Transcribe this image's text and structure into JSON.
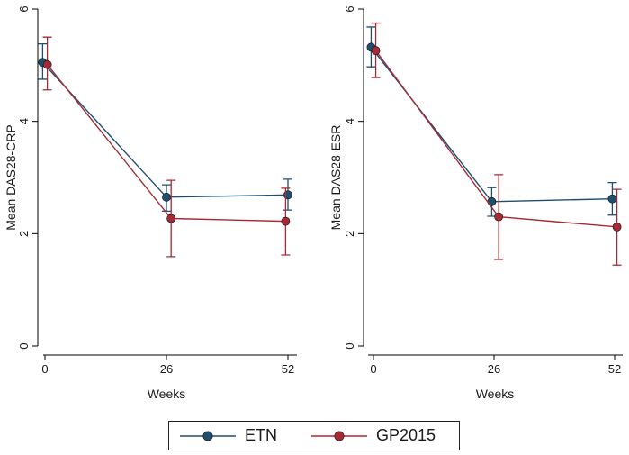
{
  "colors": {
    "etn": "#1f4e6f",
    "gp2015": "#a52a35"
  },
  "legend": {
    "entries": [
      "ETN",
      "GP2015"
    ]
  },
  "chart_data": [
    {
      "type": "line",
      "xlabel": "Weeks",
      "ylabel": "Mean DAS28-CRP",
      "x_ticks": [
        0,
        26,
        52
      ],
      "y_ticks": [
        0,
        2,
        4,
        6
      ],
      "ylim": [
        0,
        6
      ],
      "series": [
        {
          "name": "ETN",
          "x": [
            -0.5,
            26,
            52
          ],
          "y": [
            5.05,
            2.65,
            2.69
          ],
          "ci_low": [
            4.75,
            2.4,
            2.42
          ],
          "ci_high": [
            5.38,
            2.87,
            2.97
          ]
        },
        {
          "name": "GP2015",
          "x": [
            0.5,
            27,
            51.5
          ],
          "y": [
            5.01,
            2.27,
            2.22
          ],
          "ci_low": [
            4.56,
            1.59,
            1.62
          ],
          "ci_high": [
            5.5,
            2.95,
            2.81
          ]
        }
      ]
    },
    {
      "type": "line",
      "xlabel": "Weeks",
      "ylabel": "Mean DAS28-ESR",
      "x_ticks": [
        0,
        26,
        52
      ],
      "y_ticks": [
        0,
        2,
        4,
        6
      ],
      "ylim": [
        0,
        6
      ],
      "series": [
        {
          "name": "ETN",
          "x": [
            -0.5,
            25.5,
            51.5
          ],
          "y": [
            5.32,
            2.57,
            2.62
          ],
          "ci_low": [
            4.97,
            2.31,
            2.33
          ],
          "ci_high": [
            5.68,
            2.82,
            2.91
          ]
        },
        {
          "name": "GP2015",
          "x": [
            0.5,
            27,
            52.5
          ],
          "y": [
            5.26,
            2.3,
            2.12
          ],
          "ci_low": [
            4.78,
            1.54,
            1.44
          ],
          "ci_high": [
            5.75,
            3.05,
            2.79
          ]
        }
      ]
    }
  ]
}
